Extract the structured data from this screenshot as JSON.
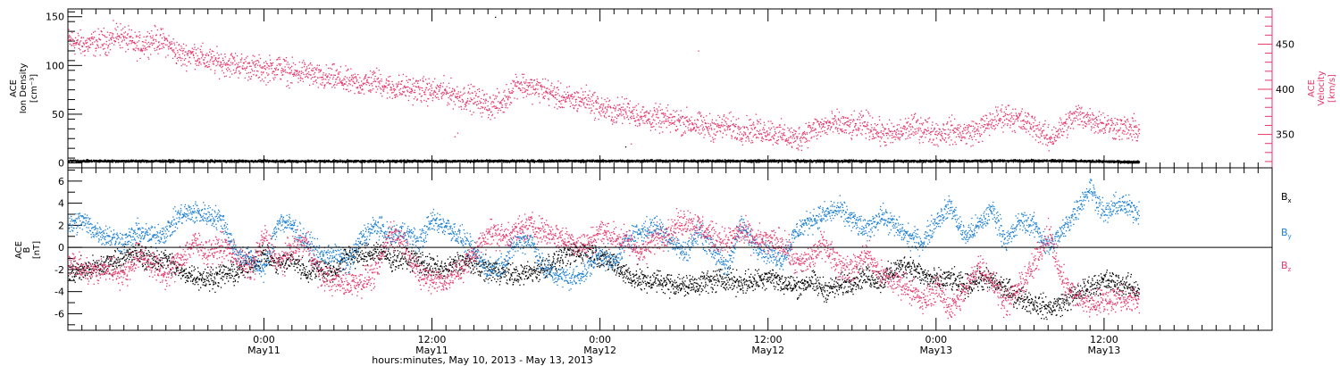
{
  "colors": {
    "black": "#000000",
    "pink": "#e8356a",
    "blue": "#1a7fd4"
  },
  "chart_data": [
    {
      "type": "scatter",
      "panel": "top",
      "ylabel_left": [
        "ACE",
        "Ion Density",
        "[cm⁻³]"
      ],
      "ylabel_right": [
        "ACE",
        "Velocity",
        "[km/s]"
      ],
      "left_axis": {
        "ylim": [
          -5,
          158
        ],
        "ticks": [
          0,
          50,
          100,
          150
        ],
        "tick_labels": [
          "0",
          "50",
          "100",
          "150"
        ]
      },
      "right_axis": {
        "ylim": [
          313,
          489
        ],
        "ticks": [
          350,
          400,
          450
        ],
        "tick_labels": [
          "350",
          "400",
          "450"
        ],
        "color": "#e8356a"
      },
      "series": [
        {
          "axis": "left",
          "color": "#000000",
          "x": [
            0,
            20,
            40,
            60,
            70,
            75,
            76.5
          ],
          "values": [
            2.5,
            2.3,
            2.6,
            2.4,
            2.8,
            1.8,
            1.5
          ],
          "spread": 0.6,
          "outliers": [
            [
              30.5,
              150
            ],
            [
              39.8,
              17
            ]
          ]
        },
        {
          "axis": "right",
          "color": "#e8356a",
          "x": [
            0,
            1,
            2,
            3,
            3.5,
            4.5,
            5,
            6,
            7,
            8,
            9,
            10,
            11,
            12,
            13,
            14,
            15,
            16,
            17,
            18,
            19,
            20,
            21,
            22,
            23,
            24,
            25,
            26,
            27,
            28,
            29,
            30,
            31,
            32,
            33,
            34,
            35,
            36,
            37,
            38,
            39,
            40,
            41,
            42,
            43,
            44,
            45,
            46,
            47,
            48,
            49,
            50,
            51,
            52,
            53,
            54,
            55,
            56,
            57,
            58,
            59,
            60,
            61,
            62,
            63,
            64,
            65,
            66,
            67,
            68,
            69,
            70,
            71,
            72,
            73,
            74,
            75,
            76.5
          ],
          "values": [
            455,
            450,
            452,
            455,
            462,
            452,
            448,
            456,
            452,
            438,
            440,
            432,
            430,
            428,
            425,
            422,
            425,
            418,
            420,
            412,
            413,
            408,
            407,
            410,
            402,
            402,
            400,
            398,
            398,
            392,
            390,
            382,
            385,
            408,
            402,
            400,
            392,
            388,
            390,
            380,
            375,
            378,
            370,
            368,
            366,
            365,
            360,
            358,
            360,
            356,
            355,
            355,
            350,
            345,
            355,
            360,
            362,
            358,
            362,
            352,
            350,
            358,
            358,
            352,
            355,
            352,
            355,
            365,
            372,
            365,
            360,
            345,
            358,
            372,
            368,
            362,
            358,
            355
          ],
          "spread": 7,
          "outliers": [
            [
              45,
              443
            ],
            [
              40.2,
              340
            ]
          ]
        }
      ],
      "marker_dip": [
        [
          27.6,
          348
        ],
        [
          27.8,
          352
        ]
      ]
    },
    {
      "type": "scatter",
      "panel": "bottom",
      "ylabel_left": [
        "ACE",
        "B",
        "[nT]"
      ],
      "axis": {
        "ylim": [
          -7.5,
          7.2
        ],
        "ticks": [
          -6,
          -4,
          -2,
          0,
          2,
          4,
          6
        ],
        "tick_labels": [
          "-6",
          "-4",
          "-2",
          "0",
          "2",
          "4",
          "6"
        ],
        "zero_line": true
      },
      "legend": [
        {
          "label": "B",
          "sub": "x",
          "color": "#000000"
        },
        {
          "label": "B",
          "sub": "y",
          "color": "#1a7fd4"
        },
        {
          "label": "B",
          "sub": "z",
          "color": "#e8356a"
        }
      ],
      "series": [
        {
          "name": "Bx",
          "color": "#000000",
          "x": [
            0,
            2,
            4,
            5,
            6,
            7,
            8,
            9,
            10,
            11,
            12,
            13,
            14,
            15,
            16,
            17,
            18,
            19,
            20,
            21,
            22,
            23,
            24,
            25,
            26,
            27,
            28,
            29,
            30,
            31,
            32,
            33,
            34,
            35,
            36,
            37,
            38,
            39,
            40,
            41,
            42,
            43,
            44,
            45,
            46,
            47,
            48,
            49,
            50,
            51,
            52,
            53,
            54,
            55,
            56,
            57,
            58,
            59,
            60,
            61,
            62,
            63,
            64,
            65,
            66,
            67,
            68,
            69,
            70,
            71,
            72,
            73,
            74,
            75,
            76.5
          ],
          "values": [
            -2.2,
            -1.8,
            -0.8,
            -0.5,
            -1.2,
            -1.0,
            -2.2,
            -2.5,
            -2.8,
            -2.4,
            -2.2,
            -1.5,
            -0.6,
            -1.5,
            -1.0,
            -2.2,
            -1.8,
            -2.2,
            -0.5,
            -0.8,
            -0.2,
            -1.0,
            -0.9,
            -1.2,
            -1.8,
            -2.0,
            -1.2,
            -1.5,
            -2.0,
            -2.2,
            -2.5,
            -2.2,
            -1.8,
            -1.0,
            -0.5,
            -0.2,
            -0.8,
            -1.5,
            -2.5,
            -3.0,
            -3.0,
            -3.2,
            -3.5,
            -3.2,
            -3.0,
            -2.8,
            -3.2,
            -3.0,
            -2.5,
            -3.2,
            -3.5,
            -3.0,
            -3.8,
            -3.5,
            -3.0,
            -2.5,
            -3.0,
            -2.0,
            -1.5,
            -2.5,
            -3.0,
            -2.8,
            -3.5,
            -2.8,
            -3.0,
            -3.8,
            -4.5,
            -5.0,
            -5.5,
            -5.0,
            -4.2,
            -3.5,
            -3.0,
            -3.2,
            -3.8
          ],
          "spread": 0.5
        },
        {
          "name": "By",
          "color": "#1a7fd4",
          "x": [
            0,
            1,
            2,
            3,
            4,
            5,
            6,
            7,
            8,
            9,
            10,
            11,
            12,
            13,
            14,
            15,
            16,
            17,
            18,
            19,
            20,
            21,
            22,
            23,
            24,
            25,
            26,
            27,
            28,
            29,
            30,
            31,
            32,
            33,
            34,
            35,
            36,
            37,
            38,
            39,
            40,
            41,
            42,
            43,
            44,
            45,
            46,
            47,
            48,
            49,
            50,
            51,
            52,
            53,
            54,
            55,
            56,
            57,
            58,
            59,
            60,
            61,
            62,
            63,
            64,
            65,
            66,
            67,
            68,
            69,
            70,
            71,
            72,
            73,
            74,
            75,
            76.5
          ],
          "values": [
            2.0,
            2.5,
            1.5,
            1.0,
            0.5,
            1.5,
            1.0,
            1.5,
            3.0,
            3.2,
            3.0,
            2.5,
            -0.5,
            -1.0,
            -2.0,
            2.5,
            2.0,
            0.5,
            -0.8,
            -0.5,
            -1.5,
            1.0,
            2.0,
            1.0,
            1.5,
            0.5,
            2.5,
            2.0,
            1.0,
            -0.5,
            -2.0,
            -1.5,
            0.5,
            0.8,
            -2.0,
            -2.5,
            -2.8,
            -2.0,
            -0.5,
            -1.5,
            1.0,
            1.5,
            2.0,
            0.8,
            -0.5,
            1.5,
            0.0,
            -2.0,
            2.0,
            0.5,
            -0.5,
            -1.0,
            1.5,
            2.5,
            3.0,
            3.5,
            2.5,
            1.5,
            3.0,
            2.0,
            1.0,
            0.5,
            2.5,
            3.8,
            1.0,
            2.0,
            3.5,
            0.5,
            2.5,
            2.0,
            0.0,
            1.5,
            3.5,
            5.5,
            3.0,
            4.0,
            3.2
          ],
          "spread": 0.5
        },
        {
          "name": "Bz",
          "color": "#e8356a",
          "x": [
            0,
            1,
            2,
            3,
            4,
            5,
            6,
            7,
            8,
            9,
            10,
            11,
            12,
            13,
            14,
            15,
            16,
            17,
            18,
            19,
            20,
            21,
            22,
            23,
            24,
            25,
            26,
            27,
            28,
            29,
            30,
            31,
            32,
            33,
            34,
            35,
            36,
            37,
            38,
            39,
            40,
            41,
            42,
            43,
            44,
            45,
            46,
            47,
            48,
            49,
            50,
            51,
            52,
            53,
            54,
            55,
            56,
            57,
            58,
            59,
            60,
            61,
            62,
            63,
            64,
            65,
            66,
            67,
            68,
            69,
            70,
            71,
            72,
            73,
            74,
            75,
            76.5
          ],
          "values": [
            -1.0,
            -2.0,
            -2.2,
            -1.8,
            -2.5,
            -0.5,
            -1.5,
            -2.5,
            -1.0,
            0.5,
            -0.5,
            0.2,
            -0.8,
            -2.0,
            1.0,
            -1.5,
            0.0,
            0.5,
            -2.5,
            -3.0,
            -3.2,
            -3.0,
            -2.2,
            1.5,
            0.5,
            -2.5,
            -2.8,
            -3.0,
            -2.0,
            -0.5,
            1.5,
            1.0,
            1.5,
            2.0,
            1.5,
            1.0,
            0.5,
            0.2,
            1.5,
            1.0,
            0.5,
            -0.5,
            1.0,
            1.5,
            2.5,
            2.0,
            1.0,
            0.5,
            1.5,
            0.8,
            0.5,
            0.5,
            -1.5,
            -1.0,
            0.5,
            -1.5,
            -2.0,
            -0.5,
            -2.5,
            -3.0,
            -3.5,
            -5.0,
            -3.5,
            -5.5,
            -4.0,
            -1.5,
            -3.0,
            -5.0,
            -3.5,
            -1.5,
            1.5,
            -3.0,
            -4.5,
            -5.0,
            -4.8,
            -4.5,
            -4.8
          ],
          "spread": 0.6
        }
      ]
    }
  ],
  "x_axis": {
    "xlim": [
      0,
      86
    ],
    "major_ticks": [
      {
        "x": 14,
        "time": "0:00",
        "date": "May11"
      },
      {
        "x": 26,
        "time": "12:00",
        "date": "May11"
      },
      {
        "x": 38,
        "time": "0:00",
        "date": "May12"
      },
      {
        "x": 50,
        "time": "12:00",
        "date": "May12"
      },
      {
        "x": 62,
        "time": "0:00",
        "date": "May13"
      },
      {
        "x": 74,
        "time": "12:00",
        "date": "May13"
      }
    ],
    "minor_step": 1,
    "xlabel": "hours:minutes, May 10, 2013 - May 13, 2013"
  }
}
